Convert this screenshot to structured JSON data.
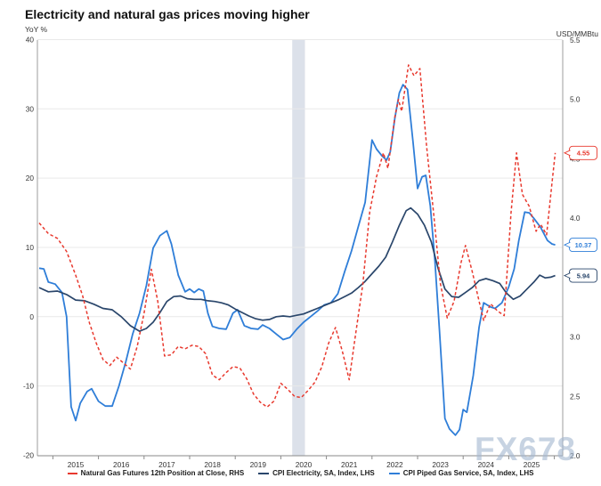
{
  "title": "Electricity and natural gas prices moving higher",
  "watermark": "FX678",
  "axes": {
    "left_unit": "YoY %",
    "right_unit": "USD/MMBtu"
  },
  "legend": {
    "items": [
      {
        "label": "Natural Gas Futures 12th Position at Close, RHS",
        "color": "#e8392e",
        "dashed": true
      },
      {
        "label": "CPI Electricity, SA, Index, LHS",
        "color": "#2a466b",
        "dashed": false
      },
      {
        "label": "CPI Piped Gas Service, SA, Index, LHS",
        "color": "#2f7ed8",
        "dashed": false
      }
    ]
  },
  "chart_data": {
    "type": "line",
    "title": "Electricity and natural gas prices moving higher",
    "x_axis": {
      "tick_labels": [
        "2015",
        "2016",
        "2017",
        "2018",
        "2019",
        "2020",
        "2021",
        "2022",
        "2023",
        "2024",
        "2025"
      ],
      "min": 2014.16,
      "max": 2025.68
    },
    "left_axis": {
      "label": "YoY %",
      "min": -20,
      "max": 40,
      "step": 10,
      "tick_values": [
        40,
        30,
        20,
        10,
        0,
        -10,
        -20
      ],
      "gridlines": [
        40,
        30,
        20,
        10,
        0,
        -10
      ]
    },
    "right_axis": {
      "label": "USD/MMBtu",
      "min": 2.0,
      "max": 5.5,
      "step": 0.5,
      "tick_labels": [
        "5.5",
        "5.0",
        "4.5",
        "4.0",
        "3.5",
        "3.0",
        "2.5",
        "2.0"
      ]
    },
    "recession_band": {
      "from": 2019.75,
      "to": 2020.03,
      "color": "#dce1ea"
    },
    "grid_color": "#e9e9e9",
    "axis_color": "#9e9e9e",
    "callouts": [
      {
        "id": "natural-gas",
        "text": "4.55",
        "value": 4.55,
        "axis": "right",
        "color": "#e8392e"
      },
      {
        "id": "piped-gas",
        "text": "10.37",
        "value": 10.37,
        "axis": "left",
        "color": "#2f7ed8"
      },
      {
        "id": "electricity",
        "text": "5.94",
        "value": 5.94,
        "axis": "left",
        "color": "#2a466b"
      }
    ],
    "series": [
      {
        "id": "piped-gas",
        "name": "CPI Piped Gas Service, SA, Index, LHS",
        "axis": "left",
        "color": "#2f7ed8",
        "dashed": false,
        "width": 1.8,
        "points": [
          [
            2014.2,
            7.0
          ],
          [
            2014.3,
            6.9
          ],
          [
            2014.4,
            5.0
          ],
          [
            2014.55,
            4.7
          ],
          [
            2014.7,
            3.5
          ],
          [
            2014.8,
            0.0
          ],
          [
            2014.9,
            -13.0
          ],
          [
            2015.0,
            -15.0
          ],
          [
            2015.1,
            -12.5
          ],
          [
            2015.25,
            -10.8
          ],
          [
            2015.35,
            -10.4
          ],
          [
            2015.5,
            -12.2
          ],
          [
            2015.65,
            -12.9
          ],
          [
            2015.8,
            -12.9
          ],
          [
            2015.95,
            -10.0
          ],
          [
            2016.1,
            -6.5
          ],
          [
            2016.25,
            -2.5
          ],
          [
            2016.4,
            0.5
          ],
          [
            2016.55,
            4.5
          ],
          [
            2016.7,
            9.9
          ],
          [
            2016.85,
            11.7
          ],
          [
            2017.0,
            12.4
          ],
          [
            2017.1,
            10.5
          ],
          [
            2017.25,
            6.0
          ],
          [
            2017.4,
            3.6
          ],
          [
            2017.5,
            4.0
          ],
          [
            2017.6,
            3.5
          ],
          [
            2017.7,
            4.0
          ],
          [
            2017.8,
            3.7
          ],
          [
            2017.9,
            0.5
          ],
          [
            2018.0,
            -1.4
          ],
          [
            2018.15,
            -1.7
          ],
          [
            2018.3,
            -1.8
          ],
          [
            2018.45,
            0.5
          ],
          [
            2018.55,
            1.0
          ],
          [
            2018.7,
            -1.3
          ],
          [
            2018.85,
            -1.7
          ],
          [
            2019.0,
            -1.8
          ],
          [
            2019.1,
            -1.2
          ],
          [
            2019.25,
            -1.7
          ],
          [
            2019.4,
            -2.5
          ],
          [
            2019.55,
            -3.3
          ],
          [
            2019.7,
            -3.0
          ],
          [
            2019.85,
            -1.8
          ],
          [
            2020.0,
            -0.8
          ],
          [
            2020.15,
            0.0
          ],
          [
            2020.3,
            0.8
          ],
          [
            2020.45,
            1.7
          ],
          [
            2020.6,
            2.0
          ],
          [
            2020.75,
            3.3
          ],
          [
            2020.9,
            6.5
          ],
          [
            2021.05,
            9.5
          ],
          [
            2021.2,
            13.0
          ],
          [
            2021.35,
            16.5
          ],
          [
            2021.5,
            25.5
          ],
          [
            2021.6,
            24.2
          ],
          [
            2021.72,
            23.2
          ],
          [
            2021.82,
            22.6
          ],
          [
            2021.9,
            23.8
          ],
          [
            2022.0,
            28.6
          ],
          [
            2022.1,
            32.3
          ],
          [
            2022.18,
            33.5
          ],
          [
            2022.28,
            32.8
          ],
          [
            2022.4,
            25.2
          ],
          [
            2022.5,
            18.5
          ],
          [
            2022.6,
            20.2
          ],
          [
            2022.68,
            20.4
          ],
          [
            2022.78,
            16.0
          ],
          [
            2022.88,
            8.0
          ],
          [
            2022.98,
            -2.0
          ],
          [
            2023.1,
            -14.7
          ],
          [
            2023.2,
            -16.2
          ],
          [
            2023.33,
            -17.1
          ],
          [
            2023.42,
            -16.3
          ],
          [
            2023.5,
            -13.4
          ],
          [
            2023.58,
            -13.8
          ],
          [
            2023.72,
            -8.5
          ],
          [
            2023.85,
            -1.5
          ],
          [
            2023.95,
            2.0
          ],
          [
            2024.1,
            1.4
          ],
          [
            2024.2,
            1.2
          ],
          [
            2024.35,
            2.0
          ],
          [
            2024.5,
            4.3
          ],
          [
            2024.62,
            6.9
          ],
          [
            2024.72,
            11.0
          ],
          [
            2024.85,
            15.1
          ],
          [
            2024.95,
            15.0
          ],
          [
            2025.05,
            14.2
          ],
          [
            2025.2,
            12.9
          ],
          [
            2025.35,
            11.0
          ],
          [
            2025.45,
            10.5
          ],
          [
            2025.52,
            10.37
          ]
        ]
      },
      {
        "id": "electricity",
        "name": "CPI Electricity, SA, Index, LHS",
        "axis": "left",
        "color": "#2a466b",
        "dashed": false,
        "width": 1.7,
        "points": [
          [
            2014.2,
            4.2
          ],
          [
            2014.4,
            3.6
          ],
          [
            2014.6,
            3.7
          ],
          [
            2014.8,
            3.2
          ],
          [
            2015.0,
            2.4
          ],
          [
            2015.2,
            2.3
          ],
          [
            2015.4,
            1.8
          ],
          [
            2015.6,
            1.2
          ],
          [
            2015.8,
            1.0
          ],
          [
            2016.0,
            0.0
          ],
          [
            2016.2,
            -1.3
          ],
          [
            2016.4,
            -2.1
          ],
          [
            2016.55,
            -1.7
          ],
          [
            2016.7,
            -0.8
          ],
          [
            2016.85,
            0.6
          ],
          [
            2017.0,
            2.2
          ],
          [
            2017.15,
            2.9
          ],
          [
            2017.3,
            3.0
          ],
          [
            2017.45,
            2.6
          ],
          [
            2017.6,
            2.5
          ],
          [
            2017.75,
            2.5
          ],
          [
            2017.9,
            2.3
          ],
          [
            2018.05,
            2.2
          ],
          [
            2018.2,
            2.0
          ],
          [
            2018.35,
            1.7
          ],
          [
            2018.5,
            1.1
          ],
          [
            2018.65,
            0.6
          ],
          [
            2018.8,
            0.1
          ],
          [
            2018.95,
            -0.3
          ],
          [
            2019.1,
            -0.5
          ],
          [
            2019.25,
            -0.4
          ],
          [
            2019.4,
            0.0
          ],
          [
            2019.55,
            0.1
          ],
          [
            2019.7,
            0.0
          ],
          [
            2019.85,
            0.2
          ],
          [
            2020.0,
            0.4
          ],
          [
            2020.15,
            0.8
          ],
          [
            2020.3,
            1.2
          ],
          [
            2020.45,
            1.6
          ],
          [
            2020.6,
            2.0
          ],
          [
            2020.75,
            2.4
          ],
          [
            2020.9,
            2.9
          ],
          [
            2021.05,
            3.4
          ],
          [
            2021.2,
            4.2
          ],
          [
            2021.35,
            5.1
          ],
          [
            2021.5,
            6.2
          ],
          [
            2021.65,
            7.3
          ],
          [
            2021.8,
            8.6
          ],
          [
            2021.95,
            10.8
          ],
          [
            2022.1,
            13.2
          ],
          [
            2022.25,
            15.3
          ],
          [
            2022.35,
            15.7
          ],
          [
            2022.5,
            14.8
          ],
          [
            2022.65,
            13.2
          ],
          [
            2022.8,
            10.8
          ],
          [
            2022.95,
            7.0
          ],
          [
            2023.1,
            4.0
          ],
          [
            2023.25,
            2.9
          ],
          [
            2023.4,
            2.8
          ],
          [
            2023.55,
            3.5
          ],
          [
            2023.7,
            4.2
          ],
          [
            2023.85,
            5.2
          ],
          [
            2024.0,
            5.5
          ],
          [
            2024.15,
            5.2
          ],
          [
            2024.3,
            4.8
          ],
          [
            2024.45,
            3.4
          ],
          [
            2024.6,
            2.5
          ],
          [
            2024.75,
            3.0
          ],
          [
            2024.9,
            4.0
          ],
          [
            2025.05,
            5.0
          ],
          [
            2025.18,
            6.0
          ],
          [
            2025.3,
            5.6
          ],
          [
            2025.42,
            5.7
          ],
          [
            2025.52,
            5.94
          ]
        ]
      },
      {
        "id": "natural-gas",
        "name": "Natural Gas Futures 12th Position at Close, RHS",
        "axis": "right",
        "color": "#e8392e",
        "dashed": true,
        "width": 1.5,
        "points": [
          [
            2014.2,
            3.96
          ],
          [
            2014.4,
            3.87
          ],
          [
            2014.6,
            3.83
          ],
          [
            2014.8,
            3.72
          ],
          [
            2015.0,
            3.52
          ],
          [
            2015.15,
            3.35
          ],
          [
            2015.3,
            3.12
          ],
          [
            2015.45,
            2.95
          ],
          [
            2015.6,
            2.81
          ],
          [
            2015.75,
            2.76
          ],
          [
            2015.9,
            2.83
          ],
          [
            2016.05,
            2.78
          ],
          [
            2016.2,
            2.73
          ],
          [
            2016.35,
            2.92
          ],
          [
            2016.5,
            3.2
          ],
          [
            2016.66,
            3.57
          ],
          [
            2016.8,
            3.3
          ],
          [
            2016.95,
            2.84
          ],
          [
            2017.1,
            2.85
          ],
          [
            2017.25,
            2.92
          ],
          [
            2017.4,
            2.9
          ],
          [
            2017.55,
            2.93
          ],
          [
            2017.7,
            2.92
          ],
          [
            2017.85,
            2.86
          ],
          [
            2018.0,
            2.68
          ],
          [
            2018.15,
            2.64
          ],
          [
            2018.3,
            2.7
          ],
          [
            2018.45,
            2.75
          ],
          [
            2018.6,
            2.74
          ],
          [
            2018.75,
            2.65
          ],
          [
            2018.9,
            2.52
          ],
          [
            2019.05,
            2.45
          ],
          [
            2019.2,
            2.41
          ],
          [
            2019.35,
            2.46
          ],
          [
            2019.5,
            2.61
          ],
          [
            2019.65,
            2.56
          ],
          [
            2019.8,
            2.5
          ],
          [
            2019.95,
            2.49
          ],
          [
            2020.1,
            2.55
          ],
          [
            2020.25,
            2.62
          ],
          [
            2020.4,
            2.75
          ],
          [
            2020.55,
            2.95
          ],
          [
            2020.7,
            3.08
          ],
          [
            2020.85,
            2.88
          ],
          [
            2021.0,
            2.64
          ],
          [
            2021.15,
            3.05
          ],
          [
            2021.3,
            3.45
          ],
          [
            2021.45,
            4.05
          ],
          [
            2021.6,
            4.35
          ],
          [
            2021.75,
            4.55
          ],
          [
            2021.85,
            4.42
          ],
          [
            2022.0,
            4.85
          ],
          [
            2022.08,
            5.0
          ],
          [
            2022.15,
            4.9
          ],
          [
            2022.3,
            5.29
          ],
          [
            2022.42,
            5.2
          ],
          [
            2022.55,
            5.26
          ],
          [
            2022.7,
            4.6
          ],
          [
            2022.85,
            4.05
          ],
          [
            2023.0,
            3.45
          ],
          [
            2023.15,
            3.16
          ],
          [
            2023.3,
            3.3
          ],
          [
            2023.45,
            3.62
          ],
          [
            2023.55,
            3.77
          ],
          [
            2023.7,
            3.55
          ],
          [
            2023.85,
            3.3
          ],
          [
            2023.95,
            3.14
          ],
          [
            2024.1,
            3.28
          ],
          [
            2024.25,
            3.22
          ],
          [
            2024.4,
            3.18
          ],
          [
            2024.55,
            4.05
          ],
          [
            2024.67,
            4.55
          ],
          [
            2024.8,
            4.2
          ],
          [
            2024.95,
            4.1
          ],
          [
            2025.1,
            3.89
          ],
          [
            2025.2,
            3.95
          ],
          [
            2025.33,
            3.86
          ],
          [
            2025.45,
            4.3
          ],
          [
            2025.52,
            4.55
          ]
        ]
      }
    ]
  }
}
